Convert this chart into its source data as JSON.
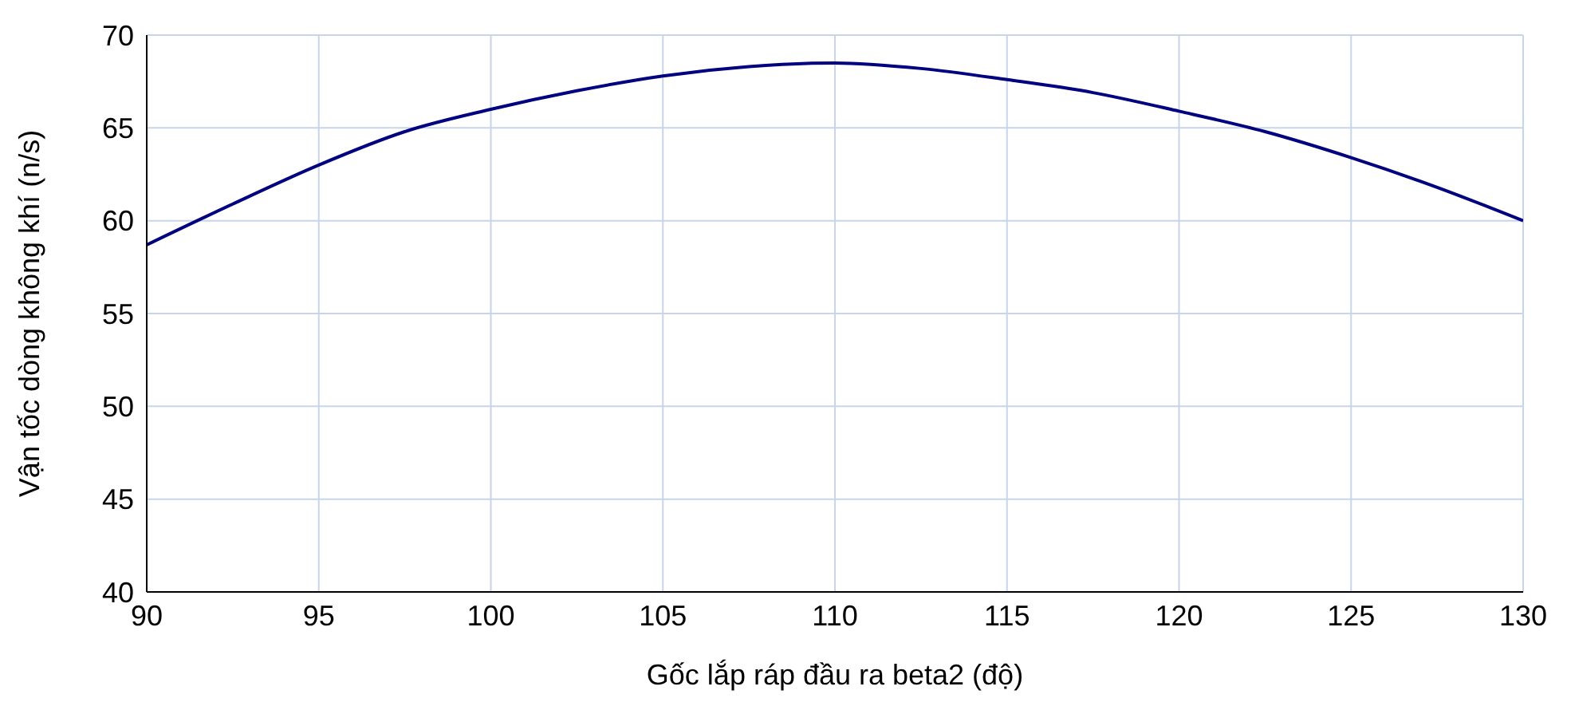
{
  "chart_data": {
    "type": "line",
    "xlabel": "Gốc lắp ráp đầu ra beta2 (độ)",
    "ylabel": "Vận tốc dòng không khí (n/s)",
    "x": [
      90,
      92.5,
      95,
      97.5,
      100,
      102.5,
      105,
      107.5,
      110,
      112.5,
      115,
      117.5,
      120,
      122.5,
      125,
      127.5,
      130
    ],
    "series": [
      {
        "color": "#000080",
        "values": [
          58.7,
          60.9,
          63.0,
          64.8,
          66.0,
          67.0,
          67.8,
          68.3,
          68.5,
          68.2,
          67.6,
          66.9,
          65.9,
          64.8,
          63.4,
          61.8,
          60.0
        ]
      }
    ],
    "xlim": [
      90,
      130
    ],
    "xticks": [
      90,
      95,
      100,
      105,
      110,
      115,
      120,
      125,
      130
    ],
    "ylim": [
      40,
      70
    ],
    "yticks": [
      40,
      45,
      50,
      55,
      60,
      65,
      70
    ],
    "grid": true,
    "marker": "none",
    "line_style": "solid",
    "legend": false
  }
}
